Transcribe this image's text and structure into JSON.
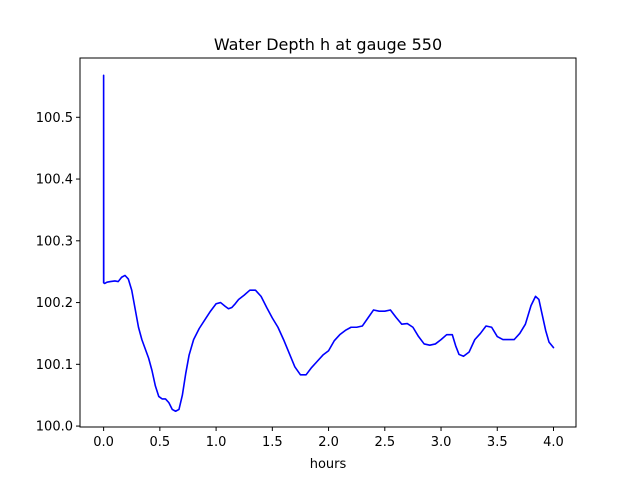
{
  "chart_data": {
    "type": "line",
    "title": "Water Depth h at gauge 550",
    "xlabel": "hours",
    "ylabel": "",
    "xlim": [
      -0.21,
      4.2
    ],
    "ylim": [
      99.9985,
      100.596
    ],
    "xticks": [
      0.0,
      0.5,
      1.0,
      1.5,
      2.0,
      2.5,
      3.0,
      3.5,
      4.0
    ],
    "xtick_labels": [
      "0.0",
      "0.5",
      "1.0",
      "1.5",
      "2.0",
      "2.5",
      "3.0",
      "3.5",
      "4.0"
    ],
    "yticks": [
      100.0,
      100.1,
      100.2,
      100.3,
      100.4,
      100.5
    ],
    "ytick_labels": [
      "100.0",
      "100.1",
      "100.2",
      "100.3",
      "100.4",
      "100.5"
    ],
    "grid": false,
    "series": [
      {
        "name": "",
        "color": "#0000ff",
        "x": [
          0.0,
          0.0,
          0.001,
          0.01,
          0.03,
          0.06,
          0.1,
          0.13,
          0.16,
          0.19,
          0.22,
          0.25,
          0.28,
          0.31,
          0.34,
          0.37,
          0.4,
          0.43,
          0.46,
          0.49,
          0.52,
          0.55,
          0.58,
          0.61,
          0.64,
          0.67,
          0.7,
          0.73,
          0.76,
          0.8,
          0.85,
          0.9,
          0.95,
          1.0,
          1.04,
          1.08,
          1.11,
          1.14,
          1.17,
          1.2,
          1.25,
          1.3,
          1.35,
          1.4,
          1.45,
          1.5,
          1.55,
          1.6,
          1.65,
          1.7,
          1.75,
          1.8,
          1.85,
          1.9,
          1.95,
          2.0,
          2.05,
          2.1,
          2.15,
          2.2,
          2.25,
          2.3,
          2.35,
          2.4,
          2.45,
          2.5,
          2.55,
          2.6,
          2.65,
          2.7,
          2.75,
          2.8,
          2.85,
          2.9,
          2.95,
          3.0,
          3.05,
          3.1,
          3.13,
          3.16,
          3.2,
          3.25,
          3.3,
          3.35,
          3.4,
          3.45,
          3.5,
          3.55,
          3.6,
          3.65,
          3.7,
          3.75,
          3.8,
          3.84,
          3.87,
          3.9,
          3.93,
          3.96,
          4.0
        ],
        "y": [
          100.232,
          100.568,
          100.232,
          100.231,
          100.233,
          100.234,
          100.235,
          100.234,
          100.241,
          100.244,
          100.238,
          100.22,
          100.19,
          100.16,
          100.14,
          100.125,
          100.11,
          100.09,
          100.065,
          100.048,
          100.044,
          100.044,
          100.038,
          100.027,
          100.024,
          100.027,
          100.05,
          100.085,
          100.115,
          100.14,
          100.158,
          100.172,
          100.186,
          100.198,
          100.2,
          100.194,
          100.19,
          100.192,
          100.198,
          100.205,
          100.212,
          100.22,
          100.22,
          100.21,
          100.192,
          100.175,
          100.16,
          100.14,
          100.118,
          100.096,
          100.083,
          100.083,
          100.095,
          100.105,
          100.115,
          100.122,
          100.138,
          100.148,
          100.155,
          100.16,
          100.16,
          100.162,
          100.175,
          100.188,
          100.186,
          100.186,
          100.188,
          100.176,
          100.165,
          100.166,
          100.16,
          100.145,
          100.133,
          100.131,
          100.133,
          100.14,
          100.148,
          100.148,
          100.13,
          100.116,
          100.113,
          100.12,
          100.14,
          100.15,
          100.162,
          100.16,
          100.145,
          100.14,
          100.14,
          100.14,
          100.15,
          100.165,
          100.195,
          100.21,
          100.205,
          100.18,
          100.155,
          100.136,
          100.127
        ]
      }
    ]
  }
}
